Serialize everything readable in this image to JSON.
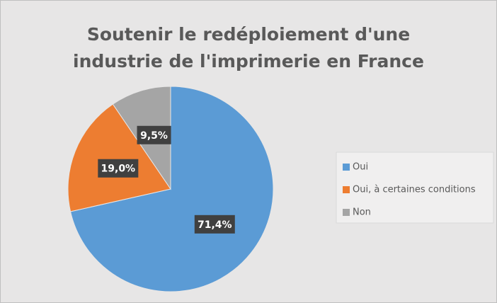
{
  "chart_data": {
    "type": "pie",
    "title": "Soutenir le redéploiement d'une industrie de l'imprimerie en France",
    "categories": [
      "Oui",
      "Oui, à certaines conditions",
      "Non"
    ],
    "values": [
      71.4,
      19.0,
      9.5
    ],
    "value_labels": [
      "71,4%",
      "19,0%",
      "9,5%"
    ],
    "colors": [
      "#5b9bd5",
      "#ed7d31",
      "#a5a5a5"
    ],
    "legend": "right"
  }
}
